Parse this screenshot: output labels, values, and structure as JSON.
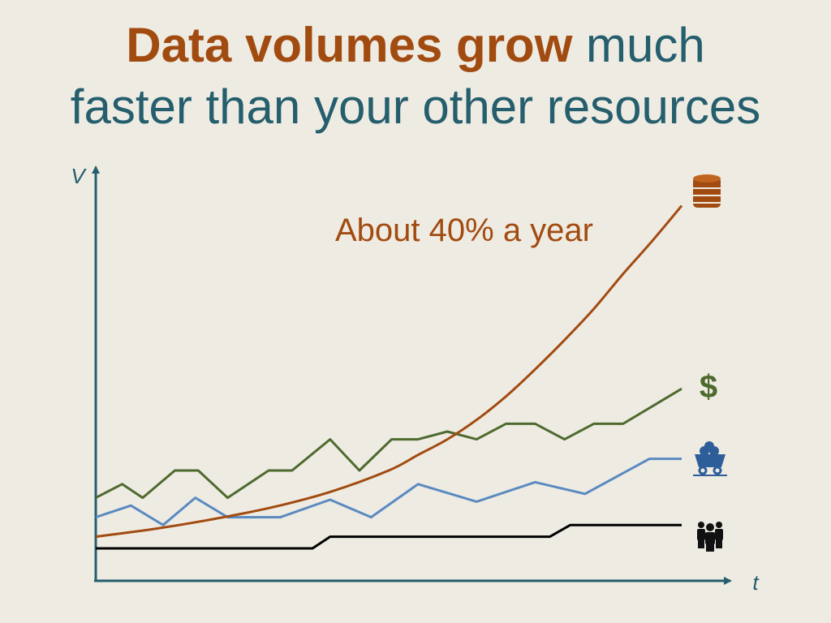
{
  "title": {
    "highlight": "Data volumes grow",
    "line1_rest": " much",
    "line2": "faster than your other resources"
  },
  "colors": {
    "background": "#EEEBE3",
    "title_text": "#255E6C",
    "highlight": "#A24B10",
    "axis": "#255E6C",
    "data": "#A24B10",
    "money": "#4E6A2E",
    "resources": "#5B8AC0",
    "people": "#000000"
  },
  "chart_data": {
    "type": "line",
    "xlabel": "t",
    "ylabel": "V",
    "xlim": [
      0,
      20
    ],
    "ylim": [
      0,
      20
    ],
    "grid": false,
    "annotation": "About 40% a year",
    "series": [
      {
        "icon": "database-icon",
        "color": "#A24B10",
        "curve": true,
        "x": [
          0,
          2,
          4,
          6,
          8,
          10,
          11,
          12,
          13,
          14,
          15,
          16,
          17,
          18,
          19,
          20
        ],
        "y": [
          1.6,
          2.0,
          2.5,
          3.1,
          3.9,
          5.0,
          5.8,
          6.6,
          7.6,
          8.8,
          10.2,
          11.7,
          13.3,
          15.1,
          16.8,
          18.6
        ]
      },
      {
        "icon": "dollar-icon",
        "color": "#4E6A2E",
        "curve": false,
        "x": [
          0,
          0.9,
          1.6,
          2.7,
          3.5,
          4.5,
          5.9,
          6.7,
          8.0,
          9.0,
          10.1,
          11.0,
          12.0,
          13.0,
          14.0,
          15.0,
          16.0,
          17.0,
          18.0,
          20.0
        ],
        "y": [
          3.6,
          4.3,
          3.6,
          5.0,
          5.0,
          3.6,
          5.0,
          5.0,
          6.6,
          5.0,
          6.6,
          6.6,
          7.0,
          6.6,
          7.4,
          7.4,
          6.6,
          7.4,
          7.4,
          9.2
        ]
      },
      {
        "icon": "mine-cart-icon",
        "color": "#5B8AC0",
        "curve": false,
        "x": [
          0,
          1.2,
          2.3,
          3.4,
          4.5,
          6.3,
          8.0,
          9.4,
          11.0,
          13.0,
          15.0,
          16.7,
          18.9,
          20.0
        ],
        "y": [
          2.6,
          3.2,
          2.2,
          3.6,
          2.6,
          2.6,
          3.5,
          2.6,
          4.3,
          3.4,
          4.4,
          3.8,
          5.6,
          5.6
        ]
      },
      {
        "icon": "people-icon",
        "color": "#000000",
        "curve": false,
        "x": [
          0,
          7.4,
          8.0,
          15.5,
          16.2,
          20.0
        ],
        "y": [
          1.0,
          1.0,
          1.6,
          1.6,
          2.2,
          2.2
        ]
      }
    ]
  }
}
